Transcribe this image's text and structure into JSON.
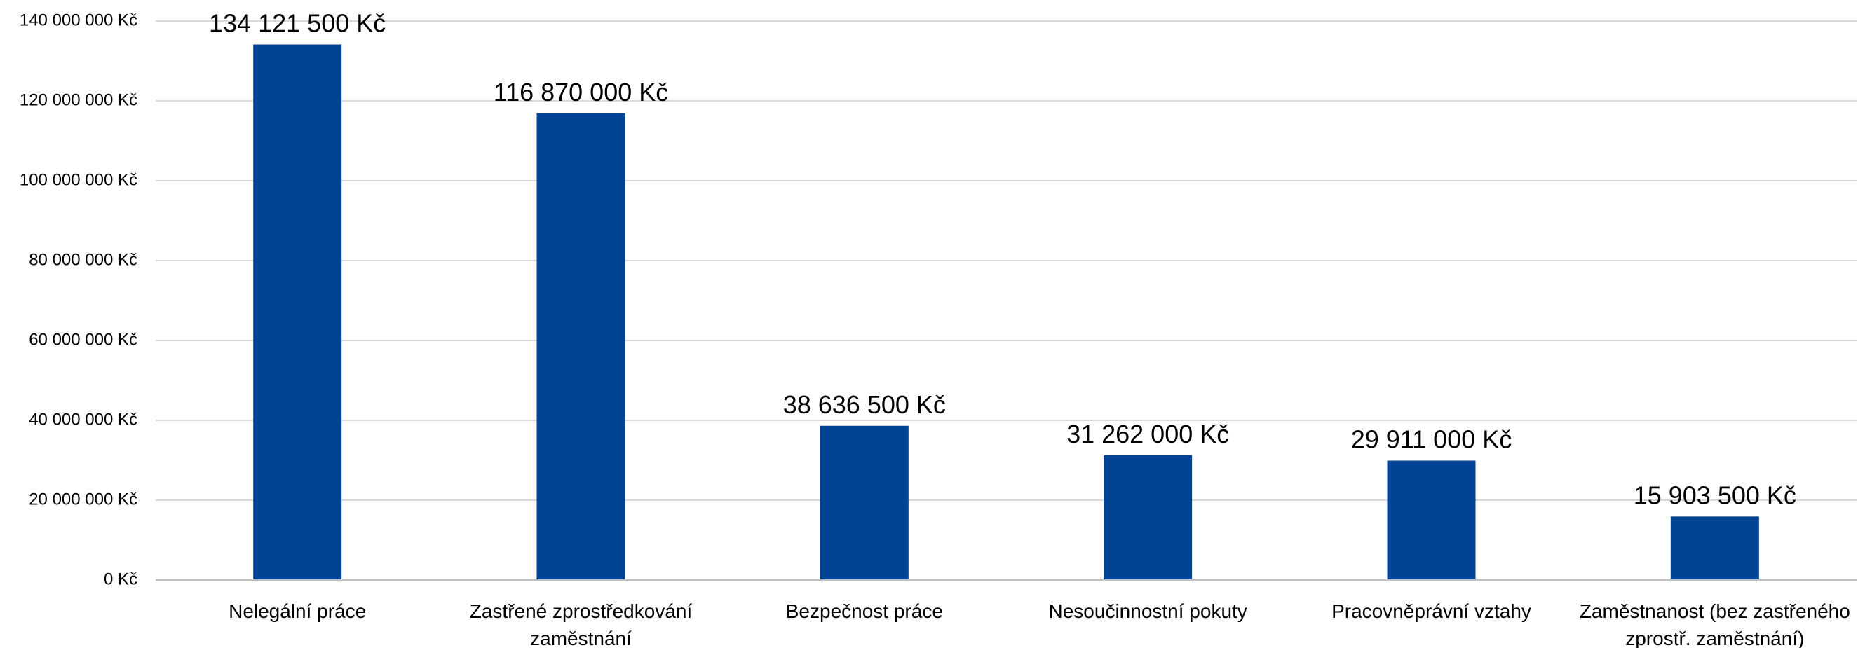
{
  "chart_data": {
    "type": "bar",
    "title": "",
    "xlabel": "",
    "ylabel": "",
    "categories": [
      [
        "Nelegální práce"
      ],
      [
        "Zastřené zprostředkování",
        "zaměstnání"
      ],
      [
        "Bezpečnost práce"
      ],
      [
        "Nesoučinnostní pokuty"
      ],
      [
        "Pracovněprávní vztahy"
      ],
      [
        "Zaměstnanost (bez zastřeného",
        "zprostř. zaměstnání)"
      ]
    ],
    "values": [
      134121500,
      116870000,
      38636500,
      31262000,
      29911000,
      15903500
    ],
    "data_labels": [
      "134 121 500 Kč",
      "116 870 000 Kč",
      "38 636 500 Kč",
      "31 262 000 Kč",
      "29 911 000 Kč",
      "15 903 500 Kč"
    ],
    "yticks": [
      0,
      20000000,
      40000000,
      60000000,
      80000000,
      100000000,
      120000000,
      140000000
    ],
    "ytick_labels": [
      "0 Kč",
      "20 000 000 Kč",
      "40 000 000 Kč",
      "60 000 000 Kč",
      "80 000 000 Kč",
      "100 000 000 Kč",
      "120 000 000 Kč",
      "140 000 000 Kč"
    ],
    "ylim": [
      0,
      140000000
    ],
    "grid": true,
    "legend": "none",
    "colors": {
      "bar": "#004595",
      "grid": "#d9d9d9",
      "axis": "#bfbfbf",
      "text": "#000000"
    }
  }
}
